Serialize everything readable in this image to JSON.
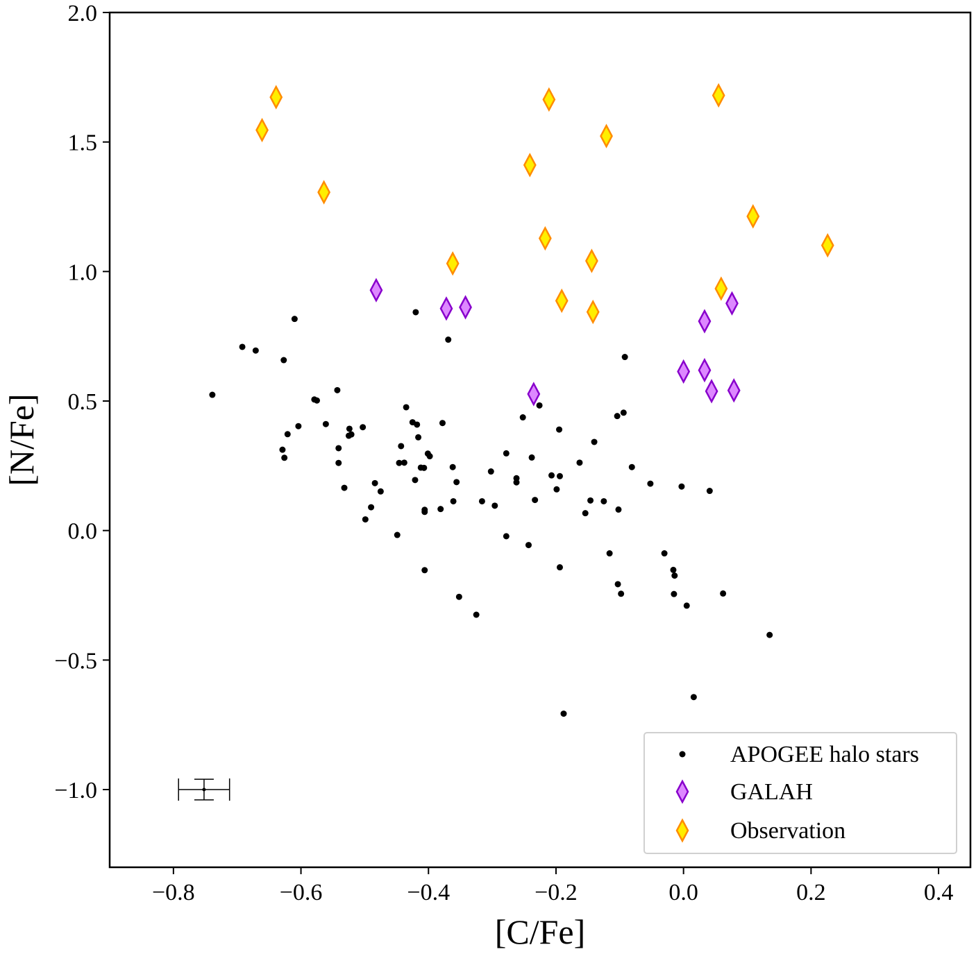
{
  "chart_data": {
    "type": "scatter",
    "xlabel": "[C/Fe]",
    "ylabel": "[N/Fe]",
    "xlim": [
      -0.9,
      0.45
    ],
    "ylim": [
      -1.3,
      2.0
    ],
    "xticks": [
      -0.8,
      -0.6,
      -0.4,
      -0.2,
      0.0,
      0.2,
      0.4
    ],
    "xtick_labels": [
      "−0.8",
      "−0.6",
      "−0.4",
      "−0.2",
      "0.0",
      "0.2",
      "0.4"
    ],
    "yticks": [
      -1.0,
      -0.5,
      0.0,
      0.5,
      1.0,
      1.5,
      2.0
    ],
    "ytick_labels": [
      "−1.0",
      "−0.5",
      "0.0",
      "0.5",
      "1.0",
      "1.5",
      "2.0"
    ],
    "legend_position": "lower-right",
    "series": [
      {
        "name": "APOGEE halo stars",
        "marker": "dot",
        "color": "#000000",
        "points": [
          [
            -0.739,
            0.524
          ],
          [
            -0.692,
            0.709
          ],
          [
            -0.671,
            0.695
          ],
          [
            -0.627,
            0.658
          ],
          [
            -0.61,
            0.817
          ],
          [
            -0.621,
            0.372
          ],
          [
            -0.629,
            0.312
          ],
          [
            -0.626,
            0.281
          ],
          [
            -0.604,
            0.403
          ],
          [
            -0.579,
            0.506
          ],
          [
            -0.575,
            0.502
          ],
          [
            -0.561,
            0.411
          ],
          [
            -0.543,
            0.542
          ],
          [
            -0.541,
            0.318
          ],
          [
            -0.541,
            0.261
          ],
          [
            -0.532,
            0.165
          ],
          [
            -0.525,
            0.366
          ],
          [
            -0.524,
            0.393
          ],
          [
            -0.521,
            0.371
          ],
          [
            -0.503,
            0.399
          ],
          [
            -0.499,
            0.043
          ],
          [
            -0.49,
            0.09
          ],
          [
            -0.484,
            0.183
          ],
          [
            -0.475,
            0.151
          ],
          [
            -0.449,
            -0.017
          ],
          [
            -0.446,
            0.261
          ],
          [
            -0.443,
            0.326
          ],
          [
            -0.438,
            0.262
          ],
          [
            -0.435,
            0.476
          ],
          [
            -0.425,
            0.418
          ],
          [
            -0.421,
            0.195
          ],
          [
            -0.42,
            0.843
          ],
          [
            -0.418,
            0.409
          ],
          [
            -0.416,
            0.36
          ],
          [
            -0.412,
            0.243
          ],
          [
            -0.407,
            0.242
          ],
          [
            -0.406,
            0.072
          ],
          [
            -0.406,
            0.08
          ],
          [
            -0.406,
            -0.153
          ],
          [
            -0.401,
            0.297
          ],
          [
            -0.398,
            0.287
          ],
          [
            -0.381,
            0.083
          ],
          [
            -0.378,
            0.415
          ],
          [
            -0.369,
            0.737
          ],
          [
            -0.362,
            0.245
          ],
          [
            -0.361,
            0.113
          ],
          [
            -0.356,
            0.187
          ],
          [
            -0.352,
            -0.256
          ],
          [
            -0.325,
            -0.325
          ],
          [
            -0.316,
            0.113
          ],
          [
            -0.302,
            0.228
          ],
          [
            -0.296,
            0.096
          ],
          [
            -0.278,
            0.298
          ],
          [
            -0.278,
            -0.022
          ],
          [
            -0.262,
            0.202
          ],
          [
            -0.262,
            0.186
          ],
          [
            -0.252,
            0.437
          ],
          [
            -0.243,
            -0.056
          ],
          [
            -0.238,
            0.282
          ],
          [
            -0.233,
            0.118
          ],
          [
            -0.226,
            0.483
          ],
          [
            -0.207,
            0.213
          ],
          [
            -0.199,
            0.159
          ],
          [
            -0.195,
            0.39
          ],
          [
            -0.194,
            0.21
          ],
          [
            -0.194,
            -0.142
          ],
          [
            -0.188,
            -0.707
          ],
          [
            -0.163,
            0.262
          ],
          [
            -0.154,
            0.067
          ],
          [
            -0.146,
            0.116
          ],
          [
            -0.14,
            0.342
          ],
          [
            -0.125,
            0.113
          ],
          [
            -0.116,
            -0.088
          ],
          [
            -0.104,
            0.442
          ],
          [
            -0.103,
            -0.207
          ],
          [
            -0.102,
            0.081
          ],
          [
            -0.098,
            -0.244
          ],
          [
            -0.094,
            0.455
          ],
          [
            -0.092,
            0.67
          ],
          [
            -0.081,
            0.245
          ],
          [
            -0.052,
            0.181
          ],
          [
            -0.03,
            -0.088
          ],
          [
            -0.016,
            -0.152
          ],
          [
            -0.015,
            -0.245
          ],
          [
            -0.014,
            -0.174
          ],
          [
            -0.003,
            0.17
          ],
          [
            0.005,
            -0.29
          ],
          [
            0.016,
            -0.643
          ],
          [
            0.041,
            0.153
          ],
          [
            0.062,
            -0.243
          ],
          [
            0.135,
            -0.403
          ]
        ]
      },
      {
        "name": "GALAH",
        "marker": "diamond",
        "fill": "#dd88ff",
        "edge": "#8800cc",
        "points": [
          [
            -0.482,
            0.928
          ],
          [
            -0.372,
            0.857
          ],
          [
            -0.342,
            0.862
          ],
          [
            -0.235,
            0.527
          ],
          [
            0.0,
            0.614
          ],
          [
            0.033,
            0.619
          ],
          [
            0.033,
            0.808
          ],
          [
            0.044,
            0.538
          ],
          [
            0.076,
            0.877
          ],
          [
            0.079,
            0.541
          ]
        ]
      },
      {
        "name": "Observation",
        "marker": "diamond",
        "fill": "#ffee00",
        "edge": "#ff8c00",
        "points": [
          [
            -0.639,
            1.673
          ],
          [
            -0.661,
            1.546
          ],
          [
            -0.564,
            1.306
          ],
          [
            -0.362,
            1.031
          ],
          [
            -0.241,
            1.411
          ],
          [
            -0.211,
            1.664
          ],
          [
            -0.217,
            1.128
          ],
          [
            -0.191,
            0.887
          ],
          [
            -0.144,
            1.041
          ],
          [
            -0.142,
            0.844
          ],
          [
            -0.121,
            1.523
          ],
          [
            0.055,
            1.68
          ],
          [
            0.059,
            0.934
          ],
          [
            0.109,
            1.213
          ],
          [
            0.226,
            1.101
          ]
        ]
      }
    ],
    "error_bar": {
      "x": -0.752,
      "y": -1.0,
      "x_err": 0.04,
      "y_err": 0.04
    }
  }
}
